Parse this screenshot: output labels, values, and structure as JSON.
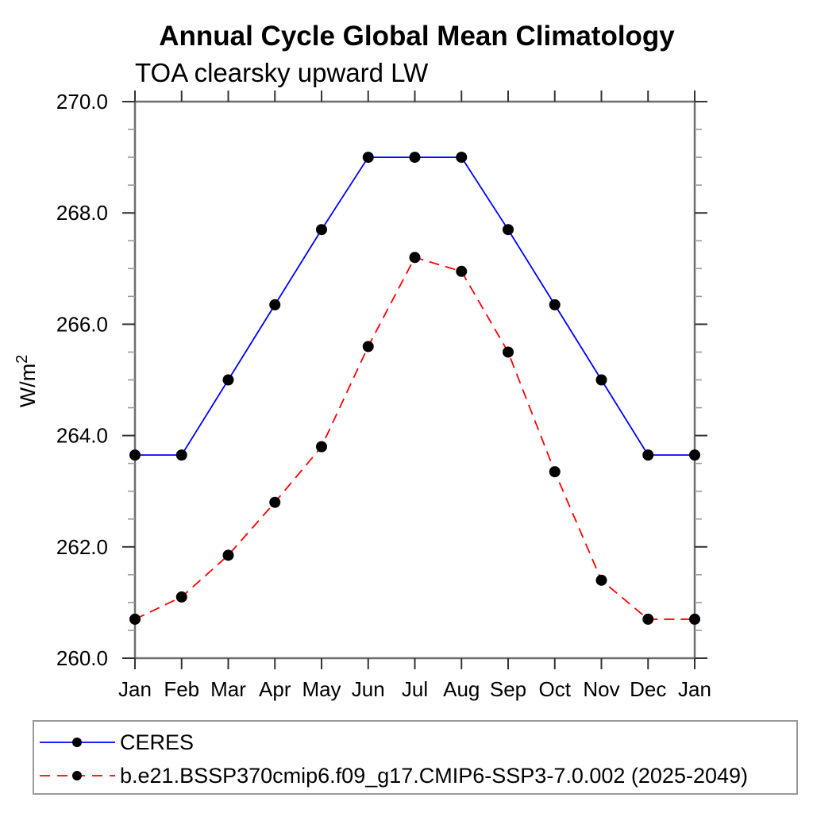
{
  "chart_data": {
    "type": "line",
    "title": "Annual Cycle Global Mean Climatology",
    "subtitle": "TOA clearsky upward LW",
    "ylabel_base": "W/m",
    "ylabel_exponent": "2",
    "xlabel": "",
    "categories": [
      "Jan",
      "Feb",
      "Mar",
      "Apr",
      "May",
      "Jun",
      "Jul",
      "Aug",
      "Sep",
      "Oct",
      "Nov",
      "Dec",
      "Jan"
    ],
    "ylim": [
      260.0,
      270.0
    ],
    "yticks": [
      260.0,
      262.0,
      264.0,
      266.0,
      268.0,
      270.0
    ],
    "ytick_labels": [
      "260.0",
      "262.0",
      "264.0",
      "266.0",
      "268.0",
      "270.0"
    ],
    "ytick_minor_interval": 0.5,
    "grid": false,
    "legend_position": "bottom",
    "frame_color": "#6e6e6e",
    "major_tick_color": "#333333",
    "minor_tick_color": "#999999",
    "marker_shape": "filled-circle",
    "series": [
      {
        "name": "CERES",
        "color": "#0000ff",
        "style": "solid",
        "marker_color": "#000000",
        "values": [
          263.65,
          263.65,
          265.0,
          266.35,
          267.7,
          269.0,
          269.0,
          269.0,
          267.7,
          266.35,
          265.0,
          263.65,
          263.65
        ]
      },
      {
        "name": "b.e21.BSSP370cmip6.f09_g17.CMIP6-SSP3-7.0.002 (2025-2049)",
        "color": "#ff0000",
        "style": "dashed",
        "marker_color": "#000000",
        "values": [
          260.7,
          261.1,
          261.85,
          262.8,
          263.8,
          265.6,
          267.2,
          266.95,
          265.5,
          263.35,
          261.4,
          260.7,
          260.7
        ]
      }
    ],
    "legend_border_color": "#999999"
  }
}
